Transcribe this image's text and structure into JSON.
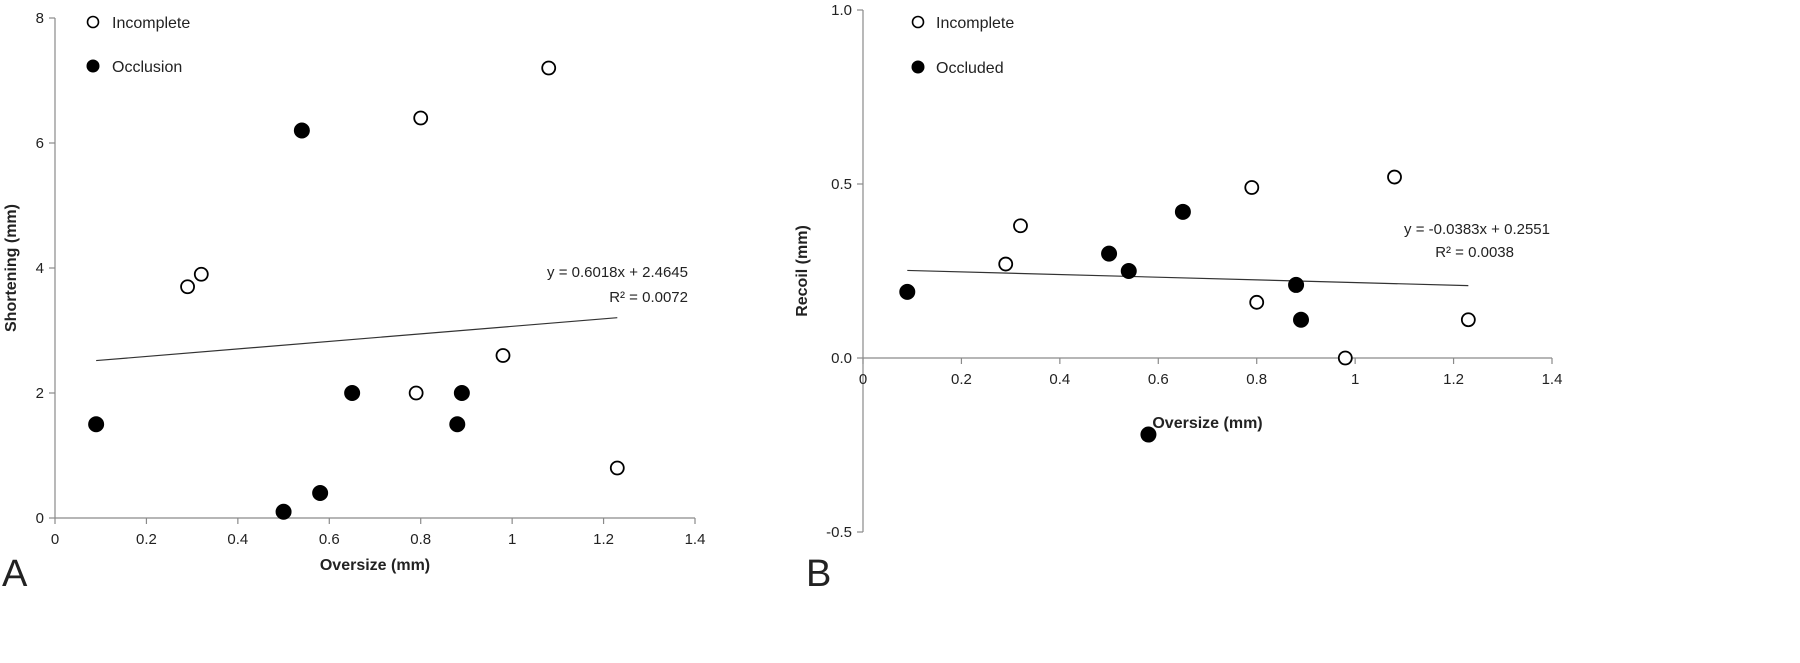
{
  "chart_data": [
    {
      "panel": "A",
      "type": "scatter",
      "xlabel": "Oversize (mm)",
      "ylabel": "Shortening (mm)",
      "xlim": [
        0,
        1.4
      ],
      "ylim": [
        0,
        8
      ],
      "x_ticks": [
        "0",
        "0.2",
        "0.4",
        "0.6",
        "0.8",
        "1",
        "1.2",
        "1.4"
      ],
      "y_ticks": [
        "0",
        "2",
        "4",
        "6",
        "8"
      ],
      "grid": false,
      "legend_position": "top-left",
      "series": [
        {
          "name": "Incomplete",
          "marker": "open-circle",
          "points": [
            {
              "x": 0.29,
              "y": 3.7
            },
            {
              "x": 0.32,
              "y": 3.9
            },
            {
              "x": 0.79,
              "y": 2.0
            },
            {
              "x": 0.8,
              "y": 6.4
            },
            {
              "x": 0.98,
              "y": 2.6
            },
            {
              "x": 1.08,
              "y": 7.2
            },
            {
              "x": 1.23,
              "y": 0.8
            }
          ]
        },
        {
          "name": "Occlusion",
          "marker": "filled-circle",
          "points": [
            {
              "x": 0.09,
              "y": 1.5
            },
            {
              "x": 0.5,
              "y": 0.1
            },
            {
              "x": 0.54,
              "y": 6.2
            },
            {
              "x": 0.58,
              "y": 0.4
            },
            {
              "x": 0.65,
              "y": 2.0
            },
            {
              "x": 0.88,
              "y": 1.5
            },
            {
              "x": 0.89,
              "y": 2.0
            }
          ]
        }
      ],
      "trendline": {
        "slope": 0.6018,
        "intercept": 2.4645,
        "x_range": [
          0.09,
          1.23
        ],
        "equation": "y = 0.6018x + 2.4645",
        "r_squared": "R² = 0.0072"
      }
    },
    {
      "panel": "B",
      "type": "scatter",
      "xlabel": "Oversize (mm)",
      "ylabel": "Recoil (mm)",
      "xlim": [
        0,
        1.4
      ],
      "ylim": [
        -0.5,
        1.0
      ],
      "x_ticks": [
        "0",
        "0.2",
        "0.4",
        "0.6",
        "0.8",
        "1",
        "1.2",
        "1.4"
      ],
      "y_ticks": [
        "-0.5",
        "0.0",
        "0.5",
        "1.0"
      ],
      "grid": false,
      "legend_position": "top-left",
      "series": [
        {
          "name": "Incomplete",
          "marker": "open-circle",
          "points": [
            {
              "x": 0.29,
              "y": 0.27
            },
            {
              "x": 0.32,
              "y": 0.38
            },
            {
              "x": 0.79,
              "y": 0.49
            },
            {
              "x": 0.8,
              "y": 0.16
            },
            {
              "x": 0.98,
              "y": 0.0
            },
            {
              "x": 1.08,
              "y": 0.52
            },
            {
              "x": 1.23,
              "y": 0.11
            }
          ]
        },
        {
          "name": "Occluded",
          "marker": "filled-circle",
          "points": [
            {
              "x": 0.09,
              "y": 0.19
            },
            {
              "x": 0.5,
              "y": 0.3
            },
            {
              "x": 0.54,
              "y": 0.25
            },
            {
              "x": 0.58,
              "y": -0.22
            },
            {
              "x": 0.65,
              "y": 0.42
            },
            {
              "x": 0.88,
              "y": 0.21
            },
            {
              "x": 0.89,
              "y": 0.11
            }
          ]
        }
      ],
      "trendline": {
        "slope": -0.0383,
        "intercept": 0.2551,
        "x_range": [
          0.09,
          1.23
        ],
        "equation": "y = -0.0383x + 0.2551",
        "r_squared": "R² = 0.0038"
      }
    }
  ]
}
